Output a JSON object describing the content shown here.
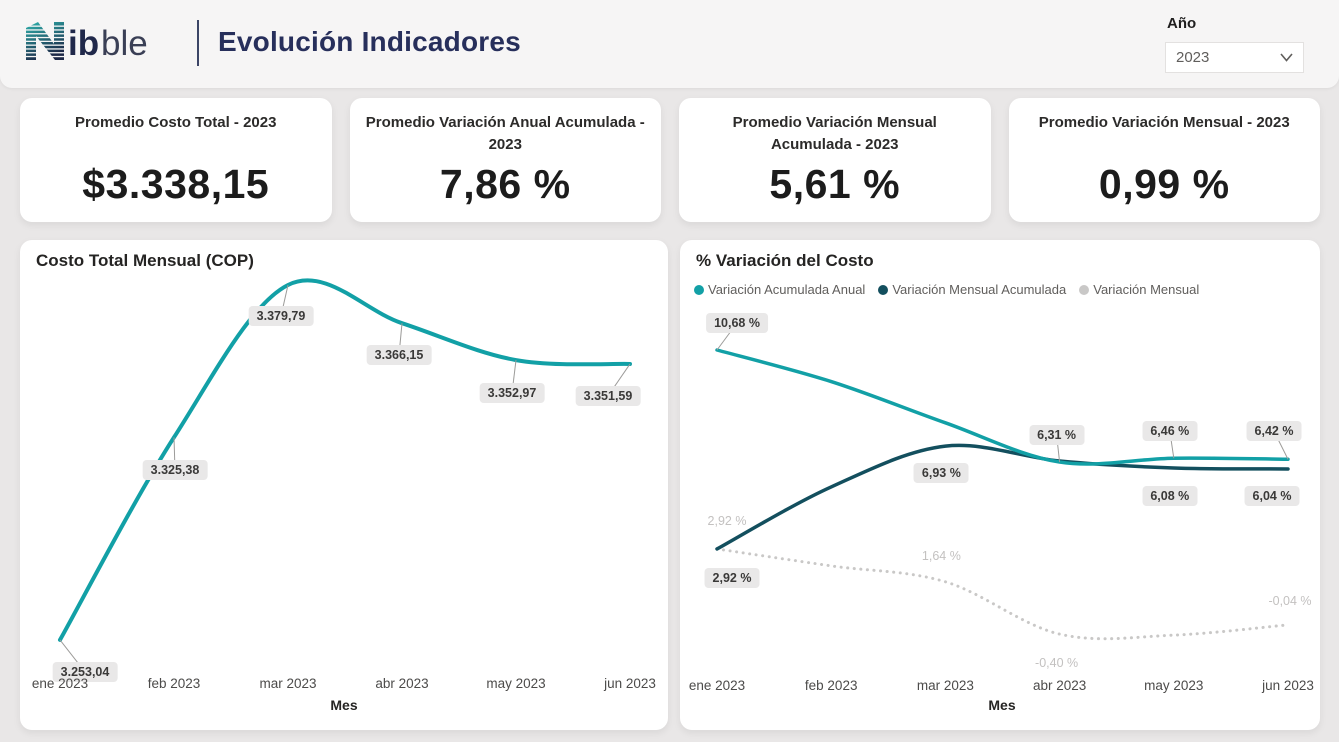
{
  "header": {
    "brand": {
      "mark": "N",
      "bold": "ib",
      "light": "ble"
    },
    "title": "Evolución Indicadores",
    "year_filter": {
      "label": "Año",
      "value": "2023"
    }
  },
  "kpis": [
    {
      "title": "Promedio Costo Total - 2023",
      "value": "$3.338,15"
    },
    {
      "title": "Promedio Variación Anual Acumulada - 2023",
      "value": "7,86 %"
    },
    {
      "title": "Promedio Variación Mensual Acumulada - 2023",
      "value": "5,61 %"
    },
    {
      "title": "Promedio Variación Mensual - 2023",
      "value": "0,99 %"
    }
  ],
  "chart_data": [
    {
      "type": "line",
      "title": "Costo Total Mensual (COP)",
      "xlabel": "Mes",
      "ylabel": "",
      "grid": false,
      "legend": false,
      "categories": [
        "ene 2023",
        "feb 2023",
        "mar 2023",
        "abr 2023",
        "may 2023",
        "jun 2023"
      ],
      "ylim": [
        3240,
        3395
      ],
      "series": [
        {
          "name": "Costo Total",
          "color": "#12a0a6",
          "style": "solid",
          "label_style": "background",
          "values": [
            3253.04,
            3325.38,
            3379.79,
            3366.15,
            3352.97,
            3351.59
          ],
          "labels": [
            "3.253,04",
            "3.325,38",
            "3.379,79",
            "3.366,15",
            "3.352,97",
            "3.351,59"
          ]
        }
      ]
    },
    {
      "type": "line",
      "title": "% Variación del Costo",
      "xlabel": "Mes",
      "ylabel": "",
      "grid": false,
      "legend": true,
      "legend_position": "top",
      "categories": [
        "ene 2023",
        "feb 2023",
        "mar 2023",
        "abr 2023",
        "may 2023",
        "jun 2023"
      ],
      "ylim": [
        -2,
        12
      ],
      "series": [
        {
          "name": "Variación Acumulada Anual",
          "color": "#12a0a6",
          "style": "solid",
          "label_style": "background",
          "values": [
            10.68,
            9.45,
            7.84,
            6.31,
            6.46,
            6.42
          ],
          "labels": [
            "10,68 %",
            null,
            null,
            "6,31 %",
            "6,46 %",
            "6,42 %"
          ]
        },
        {
          "name": "Variación Mensual Acumulada",
          "color": "#134f5e",
          "style": "solid",
          "label_style": "background",
          "values": [
            2.92,
            5.34,
            6.93,
            6.35,
            6.08,
            6.04
          ],
          "labels": [
            "2,92 %",
            null,
            "6,93 %",
            null,
            "6,08 %",
            "6,04 %"
          ]
        },
        {
          "name": "Variación Mensual",
          "color": "#c9c8c7",
          "style": "dotted",
          "label_style": "plain",
          "values": [
            2.92,
            2.26,
            1.64,
            -0.4,
            -0.44,
            -0.04
          ],
          "labels": [
            "2,92 %",
            null,
            "1,64 %",
            "-0,40 %",
            null,
            "-0,04 %"
          ]
        }
      ]
    }
  ]
}
